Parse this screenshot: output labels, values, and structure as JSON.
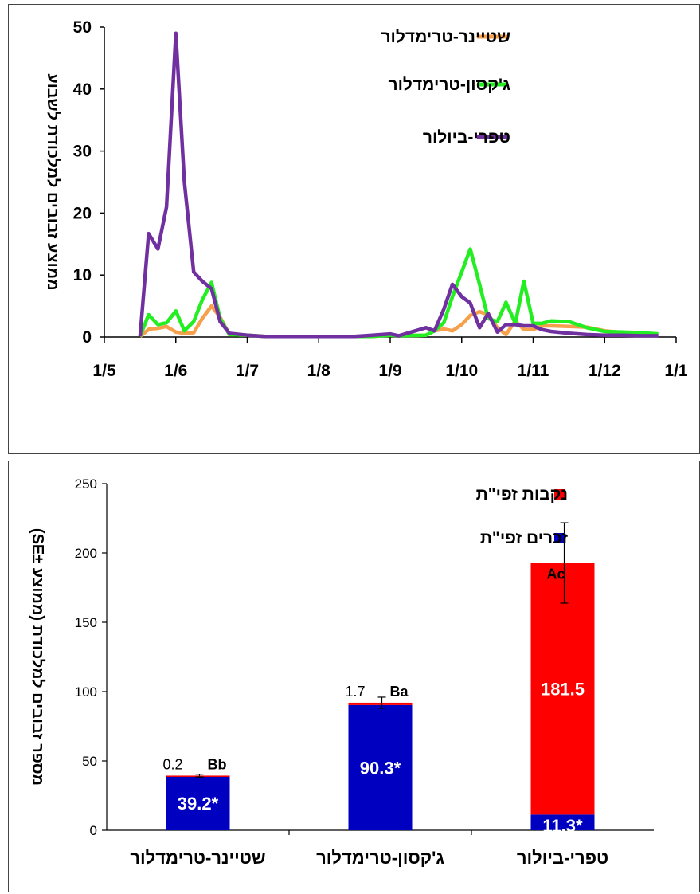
{
  "chart_data": [
    {
      "type": "line",
      "ylabel": "ממוצע זבובים למלכודת לשבוע",
      "ylim": [
        0,
        50
      ],
      "yticks": [
        "0",
        "10",
        "20",
        "30",
        "40",
        "50"
      ],
      "xticks": [
        "1/5",
        "1/6",
        "1/7",
        "1/8",
        "1/9",
        "1/10",
        "1/11",
        "1/12",
        "1/1"
      ],
      "x_range": [
        0,
        8
      ],
      "legend_position": "top-right",
      "series": [
        {
          "name": "שטיינר-טרימדלור",
          "color": "#f7a04b",
          "x": [
            0.5,
            0.63,
            0.75,
            0.87,
            1.0,
            1.12,
            1.25,
            1.37,
            1.5,
            1.62,
            1.75,
            2.0,
            2.25,
            2.5,
            2.75,
            3.0,
            3.25,
            3.5,
            3.75,
            4.0,
            4.12,
            4.5,
            4.62,
            4.75,
            4.87,
            5.0,
            5.12,
            5.25,
            5.37,
            5.5,
            5.62,
            5.75,
            5.87,
            6.0,
            6.12,
            6.25,
            6.5,
            6.75,
            7.0,
            7.25,
            7.5,
            7.75
          ],
          "y": [
            0.1,
            1.3,
            1.4,
            1.7,
            0.8,
            0.6,
            0.7,
            3.0,
            5.0,
            3.2,
            0.4,
            0.3,
            0.1,
            0.1,
            0.1,
            0.1,
            0.1,
            0.1,
            0.1,
            0.3,
            0.2,
            0.3,
            1.0,
            1.3,
            1.0,
            2.0,
            3.5,
            4.1,
            3.6,
            1.5,
            0.4,
            2.6,
            1.2,
            1.2,
            1.8,
            1.8,
            1.7,
            1.6,
            1.0,
            0.7,
            0.5,
            0.3
          ]
        },
        {
          "name": "ג'קסון-טרימדלור",
          "color": "#22ee22",
          "x": [
            0.5,
            0.62,
            0.75,
            0.87,
            1.0,
            1.12,
            1.25,
            1.37,
            1.5,
            1.62,
            1.75,
            2.0,
            2.25,
            2.5,
            2.75,
            3.0,
            3.25,
            3.5,
            3.75,
            4.0,
            4.12,
            4.5,
            4.62,
            4.75,
            4.87,
            5.0,
            5.12,
            5.25,
            5.37,
            5.5,
            5.62,
            5.75,
            5.87,
            6.0,
            6.12,
            6.25,
            6.5,
            6.75,
            7.0,
            7.25,
            7.5,
            7.75
          ],
          "y": [
            0.1,
            3.6,
            2.0,
            2.3,
            4.2,
            1.0,
            2.5,
            6.0,
            8.8,
            3.0,
            0.4,
            0.3,
            0.1,
            0.1,
            0.1,
            0.1,
            0.1,
            0.1,
            0.1,
            0.3,
            0.2,
            0.3,
            1.0,
            2.3,
            6.5,
            10.5,
            14.2,
            8.5,
            3.0,
            2.5,
            5.6,
            2.2,
            9.0,
            2.2,
            2.2,
            2.6,
            2.5,
            1.5,
            0.9,
            0.8,
            0.7,
            0.5
          ]
        },
        {
          "name": "טפרי-ביולור",
          "color": "#7030a0",
          "x": [
            0.5,
            0.62,
            0.75,
            0.87,
            1.0,
            1.12,
            1.25,
            1.37,
            1.5,
            1.62,
            1.75,
            2.0,
            2.25,
            2.5,
            2.75,
            3.0,
            3.25,
            3.5,
            3.75,
            4.0,
            4.12,
            4.5,
            4.62,
            4.75,
            4.87,
            5.0,
            5.12,
            5.25,
            5.37,
            5.5,
            5.62,
            5.75,
            5.87,
            6.0,
            6.12,
            6.25,
            6.5,
            6.75,
            7.0,
            7.25,
            7.5,
            7.75
          ],
          "y": [
            0.1,
            16.7,
            14.2,
            21.0,
            49.0,
            25.0,
            10.5,
            9.0,
            7.8,
            2.5,
            0.6,
            0.3,
            0.1,
            0.1,
            0.1,
            0.1,
            0.1,
            0.1,
            0.3,
            0.5,
            0.2,
            1.5,
            1.0,
            4.5,
            8.5,
            6.5,
            5.5,
            1.5,
            3.8,
            0.8,
            2.0,
            2.0,
            1.8,
            1.8,
            1.2,
            0.9,
            0.6,
            0.4,
            0.3,
            0.3,
            0.2,
            0.2
          ]
        }
      ]
    },
    {
      "type": "bar",
      "stacked": true,
      "ylabel": "מספר זבובים למלכודת (ממוצע ±SE)",
      "ylim": [
        0,
        250
      ],
      "yticks": [
        "0",
        "50",
        "100",
        "150",
        "200",
        "250"
      ],
      "categories": [
        "שטיינר-טרימדלור",
        "ג'קסון-טרימדלור",
        "טפרי-ביולור"
      ],
      "legend_position": "top-right",
      "series": [
        {
          "name": "זכרים זפי\"ת",
          "color": "#0000c0",
          "values": [
            39.2,
            90.3,
            11.3
          ],
          "labels": [
            "39.2*",
            "90.3*",
            "11.3*"
          ]
        },
        {
          "name": "נקבות זפי\"ת",
          "color": "#ff0000",
          "values": [
            0.2,
            1.7,
            181.5
          ],
          "labels": [
            "0.2",
            "1.7",
            "181.5"
          ]
        }
      ],
      "error_bars": [
        1.0,
        4.0,
        29.0
      ],
      "letters": [
        "Bb",
        "Ba",
        "Ac"
      ]
    }
  ]
}
